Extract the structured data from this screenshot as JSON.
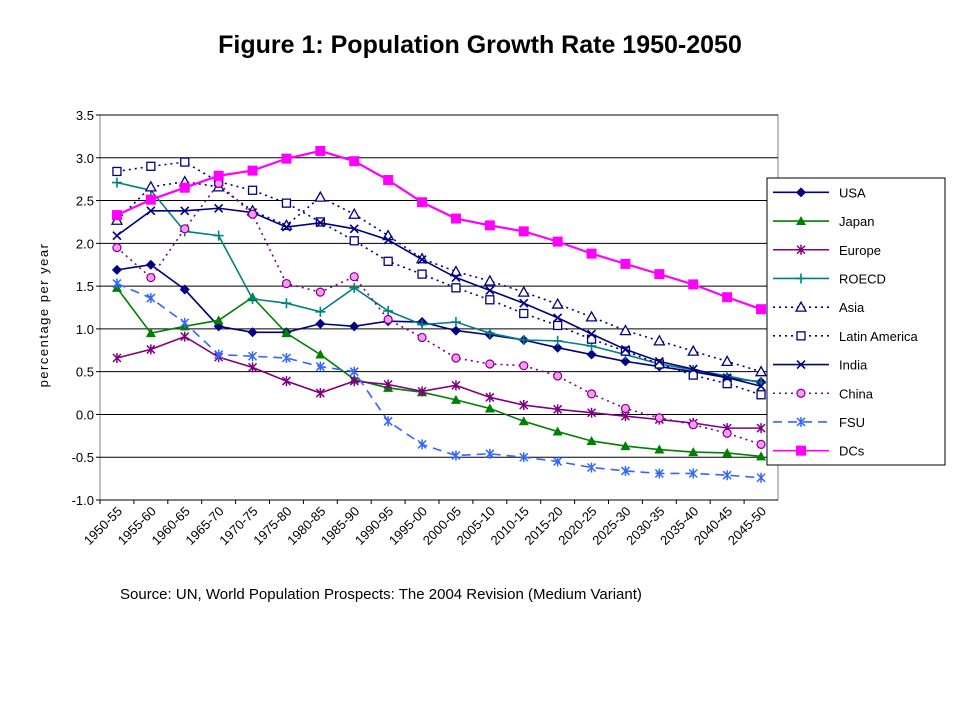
{
  "chart_data": {
    "type": "line",
    "title": "Figure 1: Population Growth Rate 1950-2050",
    "xlabel": "",
    "ylabel": "percentage per year",
    "source": "Source: UN, World Population Prospects: The 2004 Revision (Medium Variant)",
    "ylim": [
      -1.0,
      3.5
    ],
    "yticks": [
      "3.5",
      "3.0",
      "2.5",
      "2.0",
      "1.5",
      "1.0",
      "0.5",
      "0.0",
      "-0.5",
      "-1.0"
    ],
    "grid": true,
    "legend_position": "right",
    "categories": [
      "1950-55",
      "1955-60",
      "1960-65",
      "1965-70",
      "1970-75",
      "1975-80",
      "1980-85",
      "1985-90",
      "1990-95",
      "1995-00",
      "2000-05",
      "2005-10",
      "2010-15",
      "2015-20",
      "2020-25",
      "2025-30",
      "2030-35",
      "2035-40",
      "2040-45",
      "2045-50"
    ],
    "series": [
      {
        "name": "USA",
        "color": "#000080",
        "dash": "solid",
        "marker": "diamond",
        "values": [
          1.69,
          1.75,
          1.46,
          1.03,
          0.96,
          0.96,
          1.06,
          1.03,
          1.09,
          1.08,
          0.98,
          0.93,
          0.87,
          0.78,
          0.7,
          0.62,
          0.56,
          0.5,
          0.43,
          0.38
        ]
      },
      {
        "name": "Japan",
        "color": "#008000",
        "dash": "solid",
        "marker": "triangle",
        "values": [
          1.48,
          0.95,
          1.03,
          1.1,
          1.37,
          0.95,
          0.7,
          0.41,
          0.31,
          0.26,
          0.17,
          0.07,
          -0.08,
          -0.2,
          -0.31,
          -0.37,
          -0.41,
          -0.44,
          -0.45,
          -0.49
        ]
      },
      {
        "name": "Europe",
        "color": "#800080",
        "dash": "solid",
        "marker": "star",
        "values": [
          0.66,
          0.76,
          0.91,
          0.67,
          0.55,
          0.39,
          0.25,
          0.39,
          0.35,
          0.27,
          0.34,
          0.2,
          0.11,
          0.06,
          0.02,
          -0.02,
          -0.06,
          -0.1,
          -0.16,
          -0.16
        ]
      },
      {
        "name": "ROECD",
        "color": "#008080",
        "dash": "solid",
        "marker": "plus",
        "values": [
          2.71,
          2.62,
          2.14,
          2.09,
          1.35,
          1.3,
          1.2,
          1.48,
          1.21,
          1.05,
          1.08,
          0.95,
          0.87,
          0.86,
          0.8,
          0.7,
          0.59,
          0.52,
          0.45,
          0.37
        ]
      },
      {
        "name": "Asia",
        "color": "#000080",
        "dash": "dotted",
        "marker": "triangle-open",
        "values": [
          2.27,
          2.66,
          2.72,
          2.66,
          2.38,
          2.21,
          2.54,
          2.34,
          2.09,
          1.82,
          1.67,
          1.56,
          1.43,
          1.29,
          1.14,
          0.98,
          0.86,
          0.74,
          0.62,
          0.5
        ]
      },
      {
        "name": "Latin America",
        "color": "#000080",
        "dash": "dotted",
        "marker": "square-open",
        "values": [
          2.84,
          2.9,
          2.95,
          2.72,
          2.62,
          2.47,
          2.25,
          2.03,
          1.79,
          1.64,
          1.48,
          1.34,
          1.18,
          1.04,
          0.88,
          0.74,
          0.59,
          0.46,
          0.36,
          0.23
        ]
      },
      {
        "name": "India",
        "color": "#000080",
        "dash": "solid",
        "marker": "x",
        "values": [
          2.09,
          2.38,
          2.38,
          2.41,
          2.36,
          2.19,
          2.24,
          2.17,
          2.04,
          1.81,
          1.6,
          1.45,
          1.3,
          1.13,
          0.94,
          0.76,
          0.62,
          0.53,
          0.43,
          0.33
        ]
      },
      {
        "name": "China",
        "color": "#800080",
        "dash": "dotted",
        "marker": "circle",
        "values": [
          1.95,
          1.6,
          2.17,
          2.7,
          2.34,
          1.53,
          1.43,
          1.61,
          1.11,
          0.9,
          0.66,
          0.59,
          0.57,
          0.45,
          0.24,
          0.07,
          -0.04,
          -0.12,
          -0.22,
          -0.35
        ]
      },
      {
        "name": "FSU",
        "color": "#3366ff",
        "dash": "dashed",
        "marker": "star",
        "values": [
          1.53,
          1.36,
          1.07,
          0.7,
          0.68,
          0.66,
          0.56,
          0.5,
          -0.08,
          -0.35,
          -0.48,
          -0.46,
          -0.5,
          -0.55,
          -0.62,
          -0.66,
          -0.69,
          -0.69,
          -0.71,
          -0.74
        ]
      },
      {
        "name": "DCs",
        "color": "#ff00ff",
        "dash": "solid",
        "marker": "square",
        "values": [
          2.33,
          2.51,
          2.65,
          2.79,
          2.85,
          2.99,
          3.08,
          2.96,
          2.74,
          2.48,
          2.29,
          2.21,
          2.14,
          2.02,
          1.88,
          1.76,
          1.64,
          1.52,
          1.37,
          1.23
        ]
      }
    ]
  }
}
